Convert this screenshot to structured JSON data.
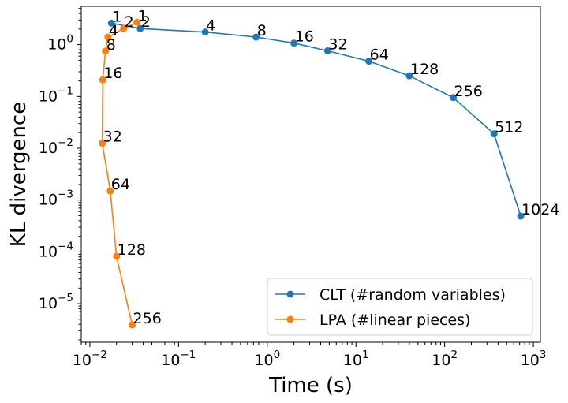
{
  "chart_data": {
    "type": "line",
    "xlabel": "Time (s)",
    "ylabel": "KL divergence",
    "xscale": "log",
    "yscale": "log",
    "xlim": [
      0.008,
      1200
    ],
    "ylim": [
      1.8e-06,
      5.5
    ],
    "grid": false,
    "legend_position": "lower-right",
    "x_ticks": [
      {
        "value": 0.01,
        "base": "10",
        "exp": "−2"
      },
      {
        "value": 0.1,
        "base": "10",
        "exp": "−1"
      },
      {
        "value": 1,
        "base": "10",
        "exp": "0"
      },
      {
        "value": 10,
        "base": "10",
        "exp": "1"
      },
      {
        "value": 100,
        "base": "10",
        "exp": "2"
      },
      {
        "value": 1000,
        "base": "10",
        "exp": "3"
      }
    ],
    "y_ticks": [
      {
        "value": 1e-05,
        "base": "10",
        "exp": "−5"
      },
      {
        "value": 0.0001,
        "base": "10",
        "exp": "−4"
      },
      {
        "value": 0.001,
        "base": "10",
        "exp": "−3"
      },
      {
        "value": 0.01,
        "base": "10",
        "exp": "−2"
      },
      {
        "value": 0.1,
        "base": "10",
        "exp": "−1"
      },
      {
        "value": 1,
        "base": "10",
        "exp": "0"
      }
    ],
    "series": [
      {
        "name": "CLT (#random variables)",
        "color": "#1f77b4",
        "x": [
          0.0175,
          0.037,
          0.2,
          0.75,
          2.0,
          4.8,
          14,
          40,
          125,
          360,
          720
        ],
        "y": [
          2.6,
          2.05,
          1.75,
          1.4,
          1.07,
          0.76,
          0.48,
          0.25,
          0.095,
          0.019,
          0.00049
        ],
        "labels": [
          "1",
          "2",
          "4",
          "8",
          "16",
          "32",
          "64",
          "128",
          "256",
          "512",
          "1024"
        ]
      },
      {
        "name": "LPA (#linear pieces)",
        "color": "#ff7f0e",
        "x": [
          0.034,
          0.024,
          0.016,
          0.015,
          0.014,
          0.0138,
          0.017,
          0.02,
          0.03
        ],
        "y": [
          2.7,
          2.05,
          1.4,
          0.75,
          0.21,
          0.0125,
          0.0015,
          8.2e-05,
          3.9e-06
        ],
        "labels": [
          "1",
          "2",
          "4",
          "8",
          "16",
          "32",
          "64",
          "128",
          "256"
        ]
      }
    ]
  }
}
